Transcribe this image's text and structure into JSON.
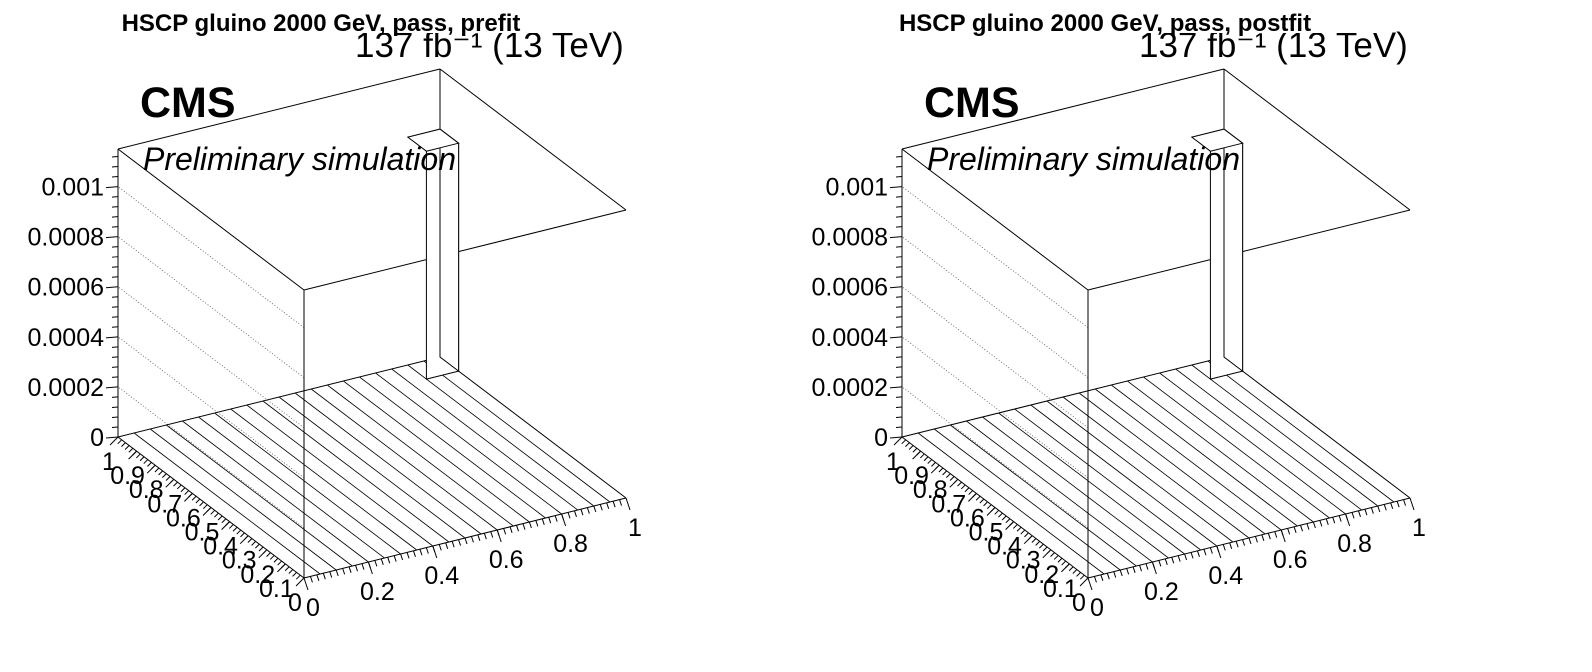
{
  "chart_data": [
    {
      "type": "lego3d",
      "title": "HSCP gluino 2000 GeV, pass, prefit",
      "lumi_label": "137 fb⁻¹ (13 TeV)",
      "cms_label": "CMS",
      "extra_label": "Preliminary simulation",
      "xlim": [
        0,
        1
      ],
      "ylim": [
        0,
        1
      ],
      "zlim": [
        0,
        0.00115
      ],
      "x_ticks": [
        "0",
        "0.2",
        "0.4",
        "0.6",
        "0.8",
        "1"
      ],
      "y_ticks": [
        "0",
        "0.1",
        "0.2",
        "0.3",
        "0.4",
        "0.5",
        "0.6",
        "0.7",
        "0.8",
        "0.9",
        "1"
      ],
      "z_ticks": [
        "0",
        "0.0002",
        "0.0004",
        "0.0006",
        "0.0008",
        "0.001"
      ],
      "grid": true,
      "bins": [
        {
          "x": 0.95,
          "y": 0.95,
          "value": 0.00091
        }
      ]
    },
    {
      "type": "lego3d",
      "title": "HSCP gluino 2000 GeV, pass, postfit",
      "lumi_label": "137 fb⁻¹ (13 TeV)",
      "cms_label": "CMS",
      "extra_label": "Preliminary simulation",
      "xlim": [
        0,
        1
      ],
      "ylim": [
        0,
        1
      ],
      "zlim": [
        0,
        0.00115
      ],
      "x_ticks": [
        "0",
        "0.2",
        "0.4",
        "0.6",
        "0.8",
        "1"
      ],
      "y_ticks": [
        "0",
        "0.1",
        "0.2",
        "0.3",
        "0.4",
        "0.5",
        "0.6",
        "0.7",
        "0.8",
        "0.9",
        "1"
      ],
      "z_ticks": [
        "0",
        "0.0002",
        "0.0004",
        "0.0006",
        "0.0008",
        "0.001"
      ],
      "grid": true,
      "bins": [
        {
          "x": 0.95,
          "y": 0.95,
          "value": 0.00091
        }
      ]
    }
  ]
}
